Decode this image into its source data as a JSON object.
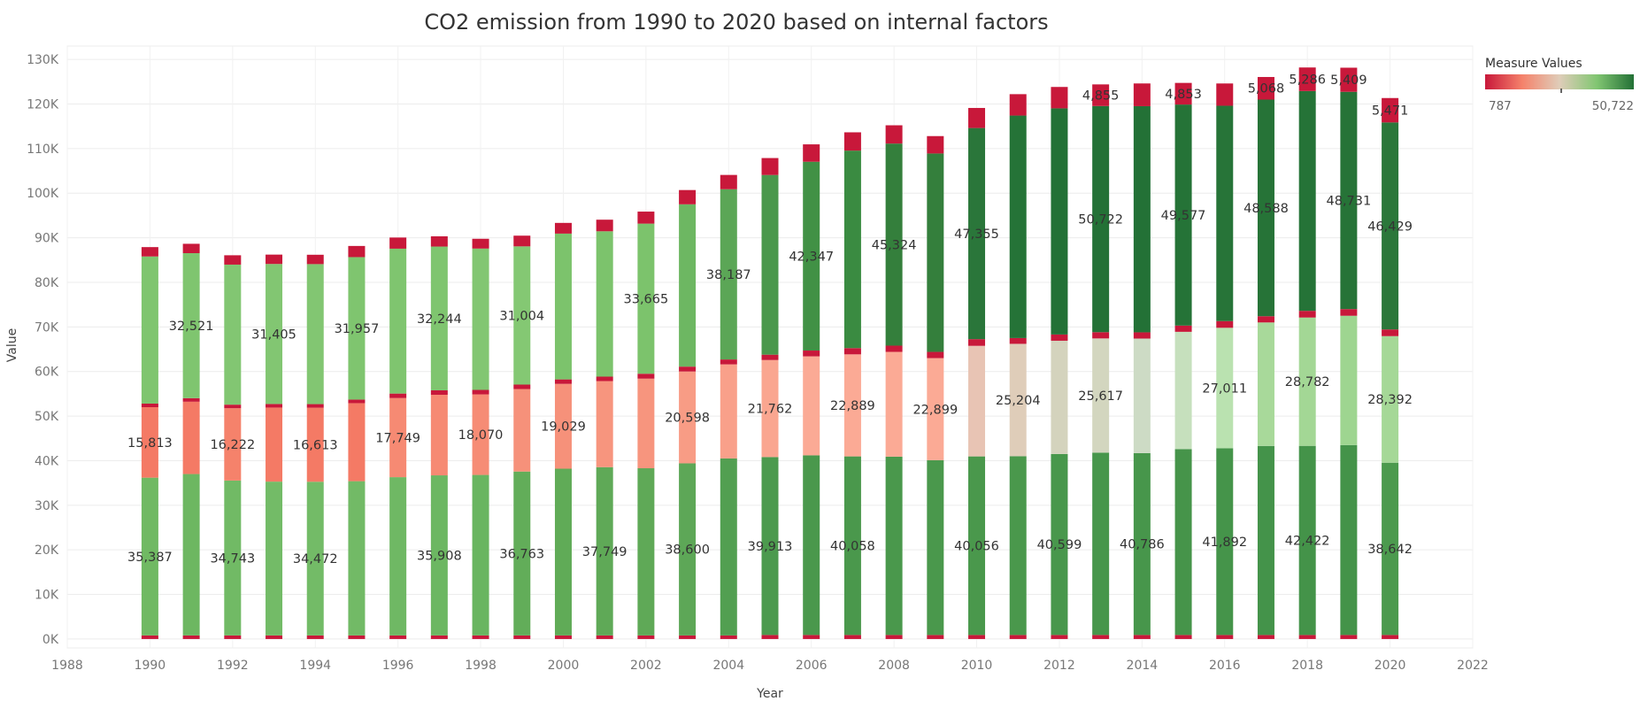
{
  "chart_data": {
    "type": "bar",
    "stacked": true,
    "title": "CO2 emission from 1990 to 2020 based on internal factors",
    "xlabel": "Year",
    "ylabel": "Value",
    "xlim": [
      1988,
      2022
    ],
    "ylim": [
      -2000,
      133000
    ],
    "x_ticks": [
      "1988",
      "1990",
      "1992",
      "1994",
      "1996",
      "1998",
      "2000",
      "2002",
      "2004",
      "2006",
      "2008",
      "2010",
      "2012",
      "2014",
      "2016",
      "2018",
      "2020",
      "2022"
    ],
    "y_ticks": [
      "0K",
      "10K",
      "20K",
      "30K",
      "40K",
      "50K",
      "60K",
      "70K",
      "80K",
      "90K",
      "100K",
      "110K",
      "120K",
      "130K"
    ],
    "grid": true,
    "legend": {
      "title": "Measure Values",
      "min_label": "787",
      "max_label": "50,722",
      "placement": "top-right",
      "colors": [
        "#c8183a",
        "#f5826b",
        "#dfcdb9",
        "#82c672",
        "#237136"
      ]
    },
    "x": [
      1990,
      1991,
      1992,
      1993,
      1994,
      1995,
      1996,
      1997,
      1998,
      1999,
      2000,
      2001,
      2002,
      2003,
      2004,
      2005,
      2006,
      2007,
      2008,
      2009,
      2010,
      2011,
      2012,
      2013,
      2014,
      2015,
      2016,
      2017,
      2018,
      2019,
      2020
    ],
    "series": [
      {
        "values": [
          800,
          800,
          800,
          800,
          800,
          800,
          800,
          800,
          800,
          800,
          800,
          800,
          800,
          800,
          800,
          900,
          900,
          900,
          900,
          900,
          900,
          900,
          900,
          900,
          900,
          900,
          900,
          900,
          900,
          900,
          900
        ]
      },
      {
        "values": [
          35387,
          36200,
          34743,
          34500,
          34472,
          34600,
          35500,
          35908,
          36000,
          36763,
          37400,
          37749,
          37500,
          38600,
          39700,
          39913,
          40300,
          40058,
          40000,
          39200,
          40056,
          40100,
          40599,
          40900,
          40786,
          41700,
          41892,
          42400,
          42422,
          42600,
          38642
        ]
      },
      {
        "values": [
          15813,
          16222,
          16222,
          16613,
          16613,
          17500,
          17749,
          18070,
          18070,
          18500,
          19029,
          19300,
          20100,
          20598,
          21100,
          21762,
          22200,
          22889,
          23500,
          22899,
          24800,
          25204,
          25400,
          25617,
          25700,
          26300,
          27011,
          27700,
          28782,
          29000,
          28392
        ]
      },
      {
        "values": [
          800,
          800,
          800,
          800,
          800,
          800,
          1000,
          1000,
          1000,
          1000,
          1000,
          1000,
          1100,
          1100,
          1100,
          1200,
          1300,
          1400,
          1400,
          1400,
          1500,
          1300,
          1400,
          1400,
          1400,
          1400,
          1500,
          1400,
          1500,
          1500,
          1500
        ]
      },
      {
        "values": [
          33000,
          32521,
          31405,
          31405,
          31400,
          31957,
          32500,
          32244,
          31700,
          31004,
          32700,
          32600,
          33665,
          36400,
          38187,
          40300,
          42347,
          44300,
          45324,
          44500,
          47355,
          49900,
          50722,
          50722,
          50722,
          49577,
          48300,
          48588,
          49300,
          48731,
          46429
        ]
      },
      {
        "values": [
          2100,
          2100,
          2100,
          2100,
          2100,
          2500,
          2500,
          2300,
          2200,
          2400,
          2400,
          2600,
          2700,
          3200,
          3200,
          3800,
          3900,
          4100,
          4100,
          3900,
          4500,
          4800,
          4800,
          4855,
          5100,
          4853,
          5000,
          5068,
          5286,
          5409,
          5471
        ]
      }
    ],
    "colors": [
      [
        "#c8183a",
        "#c8183a",
        "#c8183a",
        "#c8183a",
        "#c8183a",
        "#c8183a",
        "#c8183a",
        "#c8183a",
        "#c8183a",
        "#c8183a",
        "#c8183a",
        "#c8183a",
        "#c8183a",
        "#c8183a",
        "#c8183a",
        "#c8183a",
        "#c8183a",
        "#c8183a",
        "#c8183a",
        "#c8183a",
        "#c8183a",
        "#c8183a",
        "#c8183a",
        "#c8183a",
        "#c8183a",
        "#c8183a",
        "#c8183a",
        "#c8183a",
        "#c8183a",
        "#c8183a",
        "#c8183a"
      ],
      [
        "#70b963",
        "#6db761",
        "#71ba65",
        "#73bb67",
        "#73bb67",
        "#72ba66",
        "#6fb864",
        "#6cb762",
        "#69b560",
        "#62ad59",
        "#60ab57",
        "#5fa957",
        "#5fa957",
        "#5da757",
        "#529f51",
        "#4c9a4e",
        "#4a984c",
        "#4a984c",
        "#4a984c",
        "#4a984c",
        "#4a984c",
        "#4a984c",
        "#48974c",
        "#47964b",
        "#47964b",
        "#46944a",
        "#45944a",
        "#44934a",
        "#449349",
        "#449349",
        "#4c9a4e"
      ],
      [
        "#f47a65",
        "#f47a65",
        "#f5826b",
        "#f47a65",
        "#f47a65",
        "#f47a65",
        "#f68a73",
        "#f68a73",
        "#f68c75",
        "#f6917a",
        "#f6917a",
        "#f7957e",
        "#f7957e",
        "#f89c85",
        "#f9a08a",
        "#faa690",
        "#fbaa95",
        "#fbaa95",
        "#fbaa95",
        "#fbaa95",
        "#e8c4b4",
        "#dfcdb9",
        "#d4d3bd",
        "#d3d6bf",
        "#cddbc5",
        "#c6e0bd",
        "#bae2b0",
        "#a8d99a",
        "#a3d795",
        "#9ed590",
        "#a5d897"
      ],
      [
        "#c8183a",
        "#c8183a",
        "#c8183a",
        "#c8183a",
        "#c8183a",
        "#c8183a",
        "#c8183a",
        "#c8183a",
        "#c8183a",
        "#c8183a",
        "#c8183a",
        "#c8183a",
        "#c8183a",
        "#c8183a",
        "#c8183a",
        "#c8183a",
        "#c8183a",
        "#c8183a",
        "#c8183a",
        "#c8183a",
        "#c8183a",
        "#c8183a",
        "#c8183a",
        "#c8183a",
        "#c8183a",
        "#c8183a",
        "#c8183a",
        "#c8183a",
        "#c8183a",
        "#c8183a",
        "#c8183a"
      ],
      [
        "#7fc56f",
        "#7fc56f",
        "#82c672",
        "#82c672",
        "#82c672",
        "#7fc56f",
        "#7fc56f",
        "#7fc56f",
        "#82c672",
        "#84c873",
        "#7cc36c",
        "#7cc36c",
        "#7cc36c",
        "#6db762",
        "#5ba656",
        "#4a984c",
        "#419145",
        "#3a8b41",
        "#347f3c",
        "#347f3c",
        "#2a763a",
        "#257337",
        "#237136",
        "#237136",
        "#237136",
        "#257337",
        "#277438",
        "#267337",
        "#257337",
        "#267337",
        "#2b773a"
      ],
      [
        "#c8183a",
        "#c8183a",
        "#c8183a",
        "#c8183a",
        "#c8183a",
        "#c8183a",
        "#c8183a",
        "#c8183a",
        "#c8183a",
        "#c8183a",
        "#c8183a",
        "#c8183a",
        "#c8183a",
        "#c8183a",
        "#c8183a",
        "#c8183a",
        "#c8183a",
        "#c8183a",
        "#c8183a",
        "#c8183a",
        "#c8183a",
        "#c8183a",
        "#c8183a",
        "#c8183a",
        "#c8183a",
        "#c8183a",
        "#c8183a",
        "#c8183a",
        "#c8183a",
        "#c8183a",
        "#c8183a"
      ]
    ],
    "data_labels": [
      {
        "year": 1990,
        "series": 1,
        "text": "35,387"
      },
      {
        "year": 1992,
        "series": 1,
        "text": "34,743"
      },
      {
        "year": 1994,
        "series": 1,
        "text": "34,472"
      },
      {
        "year": 1997,
        "series": 1,
        "text": "35,908"
      },
      {
        "year": 1999,
        "series": 1,
        "text": "36,763"
      },
      {
        "year": 2001,
        "series": 1,
        "text": "37,749"
      },
      {
        "year": 2003,
        "series": 1,
        "text": "38,600"
      },
      {
        "year": 2005,
        "series": 1,
        "text": "39,913"
      },
      {
        "year": 2007,
        "series": 1,
        "text": "40,058"
      },
      {
        "year": 2010,
        "series": 1,
        "text": "40,056"
      },
      {
        "year": 2012,
        "series": 1,
        "text": "40,599"
      },
      {
        "year": 2014,
        "series": 1,
        "text": "40,786"
      },
      {
        "year": 2016,
        "series": 1,
        "text": "41,892"
      },
      {
        "year": 2018,
        "series": 1,
        "text": "42,422"
      },
      {
        "year": 2020,
        "series": 1,
        "text": "38,642"
      },
      {
        "year": 1990,
        "series": 2,
        "text": "15,813"
      },
      {
        "year": 1992,
        "series": 2,
        "text": "16,222"
      },
      {
        "year": 1994,
        "series": 2,
        "text": "16,613"
      },
      {
        "year": 1996,
        "series": 2,
        "text": "17,749"
      },
      {
        "year": 1998,
        "series": 2,
        "text": "18,070"
      },
      {
        "year": 2000,
        "series": 2,
        "text": "19,029"
      },
      {
        "year": 2003,
        "series": 2,
        "text": "20,598"
      },
      {
        "year": 2005,
        "series": 2,
        "text": "21,762"
      },
      {
        "year": 2007,
        "series": 2,
        "text": "22,889"
      },
      {
        "year": 2009,
        "series": 2,
        "text": "22,899"
      },
      {
        "year": 2011,
        "series": 2,
        "text": "25,204"
      },
      {
        "year": 2013,
        "series": 2,
        "text": "25,617"
      },
      {
        "year": 2016,
        "series": 2,
        "text": "27,011"
      },
      {
        "year": 2018,
        "series": 2,
        "text": "28,782"
      },
      {
        "year": 2020,
        "series": 2,
        "text": "28,392"
      },
      {
        "year": 1991,
        "series": 4,
        "text": "32,521"
      },
      {
        "year": 1993,
        "series": 4,
        "text": "31,405"
      },
      {
        "year": 1995,
        "series": 4,
        "text": "31,957"
      },
      {
        "year": 1997,
        "series": 4,
        "text": "32,244"
      },
      {
        "year": 1999,
        "series": 4,
        "text": "31,004"
      },
      {
        "year": 2002,
        "series": 4,
        "text": "33,665"
      },
      {
        "year": 2004,
        "series": 4,
        "text": "38,187"
      },
      {
        "year": 2006,
        "series": 4,
        "text": "42,347"
      },
      {
        "year": 2008,
        "series": 4,
        "text": "45,324"
      },
      {
        "year": 2010,
        "series": 4,
        "text": "47,355"
      },
      {
        "year": 2013,
        "series": 4,
        "text": "50,722"
      },
      {
        "year": 2015,
        "series": 4,
        "text": "49,577"
      },
      {
        "year": 2017,
        "series": 4,
        "text": "48,588"
      },
      {
        "year": 2019,
        "series": 4,
        "text": "48,731"
      },
      {
        "year": 2020,
        "series": 4,
        "text": "46,429"
      },
      {
        "year": 2013,
        "series": 5,
        "text": "4,855"
      },
      {
        "year": 2015,
        "series": 5,
        "text": "4,853"
      },
      {
        "year": 2017,
        "series": 5,
        "text": "5,068"
      },
      {
        "year": 2018,
        "series": 5,
        "text": "5,286"
      },
      {
        "year": 2019,
        "series": 5,
        "text": "5,409"
      },
      {
        "year": 2020,
        "series": 5,
        "text": "5,471"
      }
    ]
  }
}
